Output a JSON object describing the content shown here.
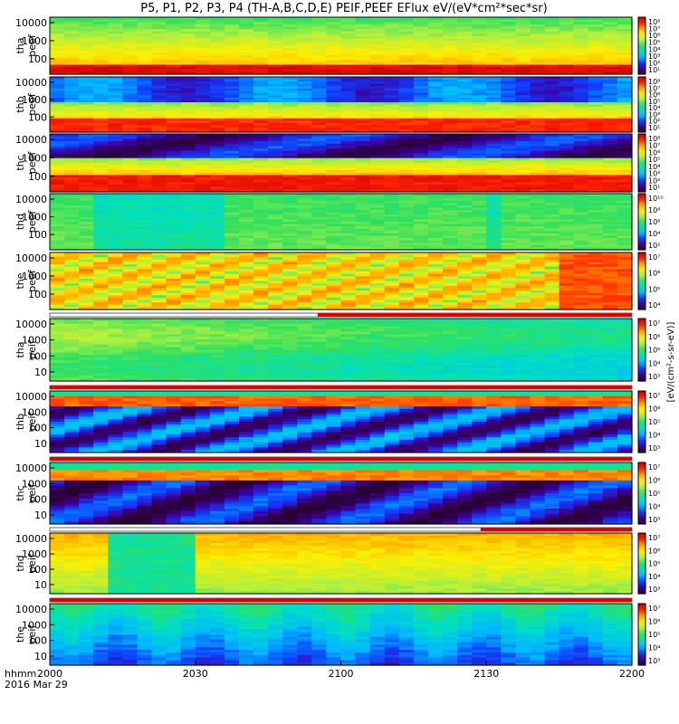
{
  "chart_data": {
    "type": "heatmap",
    "title": "P5, P1, P2, P3, P4 (TH-A,B,C,D,E) PEIF,PEEF EFlux eV/(eV*cm²*sec*sr)",
    "colorbar_unit": "[eV/(cm²-s-sr-eV)]",
    "x_axis": {
      "ticks": [
        "2000",
        "2030",
        "2100",
        "2130",
        "2200"
      ],
      "label_line1": "hhmm",
      "label_line2": "2016 Mar 29",
      "range": [
        "20:00",
        "22:00"
      ]
    },
    "y_scale": "log",
    "colormap": [
      "#2a0030",
      "#3c00a0",
      "#1040ff",
      "#00b8ff",
      "#00e0c0",
      "#30e060",
      "#b0f040",
      "#ffee00",
      "#ffa000",
      "#ff2000",
      "#c00000"
    ],
    "panels": [
      {
        "name": "tha peef",
        "ylabel": [
          "tha",
          "peef"
        ],
        "yticks": [
          "10000",
          "1000",
          "100"
        ],
        "cbar_ticks": [
          "10⁸",
          "10⁷",
          "10⁶",
          "10⁵",
          "10⁴",
          "10³",
          "10²",
          "10¹"
        ]
      },
      {
        "name": "thb peef",
        "ylabel": [
          "thb",
          "peef"
        ],
        "yticks": [
          "10000",
          "1000",
          "100"
        ],
        "cbar_ticks": [
          "10⁸",
          "10⁷",
          "10⁶",
          "10⁵",
          "10⁴",
          "10³",
          "10²",
          "10¹"
        ]
      },
      {
        "name": "thc peef",
        "ylabel": [
          "thc",
          "peef"
        ],
        "yticks": [
          "10000",
          "1000",
          "100"
        ],
        "cbar_ticks": [
          "10⁸",
          "10⁷",
          "10⁶",
          "10⁵",
          "10⁴",
          "10³",
          "10²",
          "10¹"
        ]
      },
      {
        "name": "thd peef",
        "ylabel": [
          "thd",
          "peef"
        ],
        "yticks": [
          "10000",
          "1000",
          "100"
        ],
        "cbar_ticks": [
          "10¹⁰",
          "10⁸",
          "10⁶",
          "10⁴",
          "10²"
        ]
      },
      {
        "name": "the peef",
        "ylabel": [
          "the",
          "peef"
        ],
        "yticks": [
          "10000",
          "1000",
          "100"
        ],
        "cbar_ticks": [
          "10⁷",
          "10⁶",
          "10⁵",
          "10⁴"
        ]
      },
      {
        "name": "tha peif",
        "ylabel": [
          "tha",
          "peif"
        ],
        "yticks": [
          "10000",
          "1000",
          "100",
          "10"
        ],
        "cbar_ticks": [
          "10⁷",
          "10⁶",
          "10⁵",
          "10⁴",
          "10³"
        ]
      },
      {
        "name": "thb peif",
        "ylabel": [
          "thb",
          "peif"
        ],
        "yticks": [
          "10000",
          "1000",
          "100",
          "10"
        ],
        "cbar_ticks": [
          "10⁷",
          "10⁶",
          "10⁵",
          "10⁴",
          "10³"
        ]
      },
      {
        "name": "thc peif",
        "ylabel": [
          "thc",
          "peif"
        ],
        "yticks": [
          "10000",
          "1000",
          "100",
          "10"
        ],
        "cbar_ticks": [
          "10⁷",
          "10⁶",
          "10⁵",
          "10⁴",
          "10³"
        ]
      },
      {
        "name": "thd peif",
        "ylabel": [
          "thd",
          "peif"
        ],
        "yticks": [
          "10000",
          "1000",
          "100",
          "10"
        ],
        "cbar_ticks": [
          "10⁷",
          "10⁶",
          "10⁵",
          "10⁴",
          "10³"
        ]
      },
      {
        "name": "the peif",
        "ylabel": [
          "the",
          "peif"
        ],
        "yticks": [
          "10000",
          "1000",
          "100",
          "10"
        ],
        "cbar_ticks": [
          "10⁷",
          "10⁶",
          "10⁵",
          "10⁴",
          "10³"
        ]
      }
    ]
  }
}
